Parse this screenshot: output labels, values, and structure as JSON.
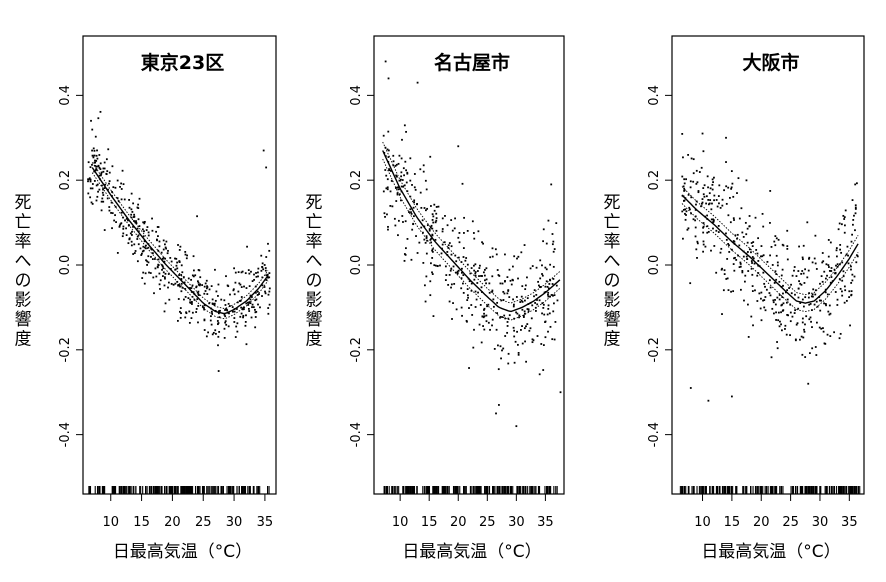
{
  "chart_data": [
    {
      "type": "scatter",
      "title": "東京23区",
      "xlabel": "日最高気温（°C）",
      "ylabel": "死亡率への影響度",
      "xlim": [
        5.5,
        36.8
      ],
      "ylim": [
        -0.54,
        0.54
      ],
      "xticks": [
        10,
        15,
        20,
        25,
        30,
        35
      ],
      "yticks": [
        -0.4,
        -0.2,
        0.0,
        0.2,
        0.4
      ],
      "xtick_labels": [
        "10",
        "15",
        "20",
        "25",
        "30",
        "35"
      ],
      "ytick_labels": [
        "-0.4",
        "-0.2",
        "0.0",
        "0.2",
        "0.4"
      ],
      "rug_range": [
        6.3,
        35.8
      ],
      "fit": {
        "x": [
          7,
          10,
          13,
          16,
          19,
          22,
          25,
          27,
          28.5,
          30,
          32,
          34,
          35.5
        ],
        "y": [
          0.23,
          0.165,
          0.105,
          0.05,
          0.0,
          -0.045,
          -0.09,
          -0.11,
          -0.115,
          -0.105,
          -0.085,
          -0.055,
          -0.025
        ]
      },
      "ci_halfwidth": 0.012,
      "scatter": {
        "n": 550,
        "x_range": [
          6.3,
          35.8
        ],
        "noise_sd": 0.045,
        "outliers": [
          [
            6.8,
            0.34
          ],
          [
            34.8,
            0.27
          ],
          [
            35.2,
            0.23
          ],
          [
            27.5,
            -0.25
          ],
          [
            24,
            0.115
          ],
          [
            35.5,
            0.05
          ]
        ]
      }
    },
    {
      "type": "scatter",
      "title": "名古屋市",
      "xlabel": "日最高気温（°C）",
      "ylabel": "死亡率への影響度",
      "xlim": [
        5.5,
        38.2
      ],
      "ylim": [
        -0.54,
        0.54
      ],
      "xticks": [
        10,
        15,
        20,
        25,
        30,
        35
      ],
      "yticks": [
        -0.4,
        -0.2,
        0.0,
        0.2,
        0.4
      ],
      "xtick_labels": [
        "10",
        "15",
        "20",
        "25",
        "30",
        "35"
      ],
      "ytick_labels": [
        "-0.4",
        "-0.2",
        "0.0",
        "0.2",
        "0.4"
      ],
      "rug_range": [
        7.0,
        37.2
      ],
      "fit": {
        "x": [
          7,
          10,
          13,
          16,
          19,
          22,
          25,
          27,
          29,
          31,
          33,
          35,
          37.5
        ],
        "y": [
          0.27,
          0.18,
          0.11,
          0.055,
          0.01,
          -0.035,
          -0.075,
          -0.1,
          -0.11,
          -0.1,
          -0.085,
          -0.065,
          -0.035
        ]
      },
      "ci_halfwidth": 0.02,
      "scatter": {
        "n": 500,
        "x_range": [
          7.0,
          37.5
        ],
        "noise_sd": 0.07,
        "outliers": [
          [
            7.5,
            0.48
          ],
          [
            8,
            0.44
          ],
          [
            13,
            0.43
          ],
          [
            20,
            0.28
          ],
          [
            26.5,
            -0.35
          ],
          [
            27,
            -0.33
          ],
          [
            30,
            -0.38
          ],
          [
            36,
            0.19
          ],
          [
            37.6,
            -0.3
          ]
        ]
      }
    },
    {
      "type": "scatter",
      "title": "大阪市",
      "xlabel": "日最高気温（°C）",
      "ylabel": "死亡率への影響度",
      "xlim": [
        4.8,
        37.5
      ],
      "ylim": [
        -0.54,
        0.54
      ],
      "xticks": [
        10,
        15,
        20,
        25,
        30,
        35
      ],
      "yticks": [
        -0.4,
        -0.2,
        0.0,
        0.2,
        0.4
      ],
      "xtick_labels": [
        "10",
        "15",
        "20",
        "25",
        "30",
        "35"
      ],
      "ytick_labels": [
        "-0.4",
        "-0.2",
        "0.0",
        "0.2",
        "0.4"
      ],
      "rug_range": [
        6.0,
        36.8
      ],
      "fit": {
        "x": [
          6.5,
          9,
          12,
          15,
          18,
          21,
          24,
          26,
          27.5,
          29,
          31,
          33,
          35,
          36.5
        ],
        "y": [
          0.165,
          0.13,
          0.095,
          0.055,
          0.02,
          -0.02,
          -0.06,
          -0.085,
          -0.09,
          -0.085,
          -0.06,
          -0.025,
          0.015,
          0.05
        ]
      },
      "ci_halfwidth": 0.02,
      "scatter": {
        "n": 520,
        "x_range": [
          6.5,
          36.5
        ],
        "noise_sd": 0.07,
        "outliers": [
          [
            8,
            -0.29
          ],
          [
            11,
            -0.32
          ],
          [
            15,
            -0.31
          ],
          [
            14,
            0.3
          ],
          [
            10,
            0.31
          ],
          [
            28,
            -0.28
          ],
          [
            36,
            0.19
          ]
        ]
      }
    }
  ]
}
